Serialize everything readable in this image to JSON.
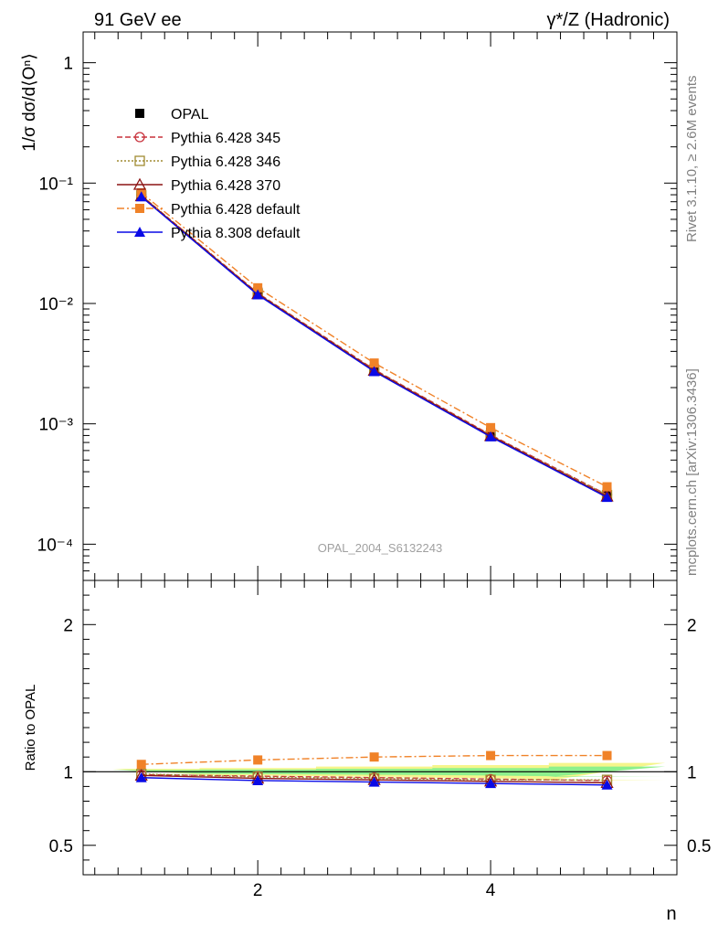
{
  "header": {
    "left": "91 GeV ee",
    "right": "γ*/Z (Hadronic)"
  },
  "side_text": {
    "rivet": "Rivet 3.1.10, ≥ 2.6M events",
    "mcplots": "mcplots.cern.ch [arXiv:1306.3436]"
  },
  "analysis_id": "OPAL_2004_S6132243",
  "colors": {
    "opal": "#000000",
    "p345": "#c8323c",
    "p346": "#a08c32",
    "p370": "#8c1414",
    "pdefault": "#f08228",
    "p8": "#0a0ae6",
    "band_yellow": "#f5f58c",
    "band_green": "#8cf08c"
  },
  "chart_data": [
    {
      "type": "line",
      "panel": "main",
      "ylabel": "1/σ dσ/d⟨Oⁿ⟩",
      "yscale": "log",
      "ylim": [
        5e-05,
        1.8
      ],
      "xlim": [
        0.5,
        5.6
      ],
      "y_ticks": [
        "10⁻⁴",
        "10⁻³",
        "10⁻²",
        "10⁻¹",
        "1"
      ],
      "x": [
        1,
        2,
        3,
        4,
        5
      ],
      "series": [
        {
          "name": "OPAL",
          "style": "data",
          "values": [
            0.08,
            0.0125,
            0.0029,
            0.00085,
            0.00027
          ]
        },
        {
          "name": "Pythia 6.428 345",
          "style": "open-circle-dashed",
          "values": [
            0.079,
            0.0122,
            0.00283,
            0.00081,
            0.000258
          ]
        },
        {
          "name": "Pythia 6.428 346",
          "style": "open-square-dotted",
          "values": [
            0.079,
            0.0121,
            0.0028,
            0.0008,
            0.000256
          ]
        },
        {
          "name": "Pythia 6.428 370",
          "style": "open-triangle-solid",
          "values": [
            0.078,
            0.012,
            0.00277,
            0.000795,
            0.00025
          ]
        },
        {
          "name": "Pythia 6.428 default",
          "style": "filled-square-dashdot",
          "values": [
            0.083,
            0.0135,
            0.0032,
            0.00093,
            0.0003
          ]
        },
        {
          "name": "Pythia 8.308 default",
          "style": "filled-triangle-solid",
          "values": [
            0.077,
            0.0118,
            0.00272,
            0.00078,
            0.000245
          ]
        }
      ]
    },
    {
      "type": "line",
      "panel": "ratio",
      "ylabel": "Ratio to OPAL",
      "xlabel": "n",
      "ylim": [
        0.3,
        2.3
      ],
      "xlim": [
        0.5,
        5.6
      ],
      "y_ticks": [
        "0.5",
        "1",
        "2"
      ],
      "x_ticks": [
        "2",
        "4"
      ],
      "x": [
        1,
        2,
        3,
        4,
        5
      ],
      "band_yellow": [
        0.02,
        0.025,
        0.035,
        0.045,
        0.06
      ],
      "band_green": [
        0.012,
        0.015,
        0.02,
        0.025,
        0.035
      ],
      "series": [
        {
          "name": "Pythia 6.428 345",
          "values": [
            0.98,
            0.97,
            0.96,
            0.95,
            0.94
          ]
        },
        {
          "name": "Pythia 6.428 346",
          "values": [
            0.985,
            0.965,
            0.955,
            0.945,
            0.945
          ]
        },
        {
          "name": "Pythia 6.428 370",
          "values": [
            0.975,
            0.955,
            0.945,
            0.935,
            0.925
          ]
        },
        {
          "name": "Pythia 6.428 default",
          "values": [
            1.05,
            1.08,
            1.1,
            1.11,
            1.11
          ]
        },
        {
          "name": "Pythia 8.308 default",
          "values": [
            0.96,
            0.94,
            0.93,
            0.92,
            0.91
          ]
        }
      ]
    }
  ]
}
